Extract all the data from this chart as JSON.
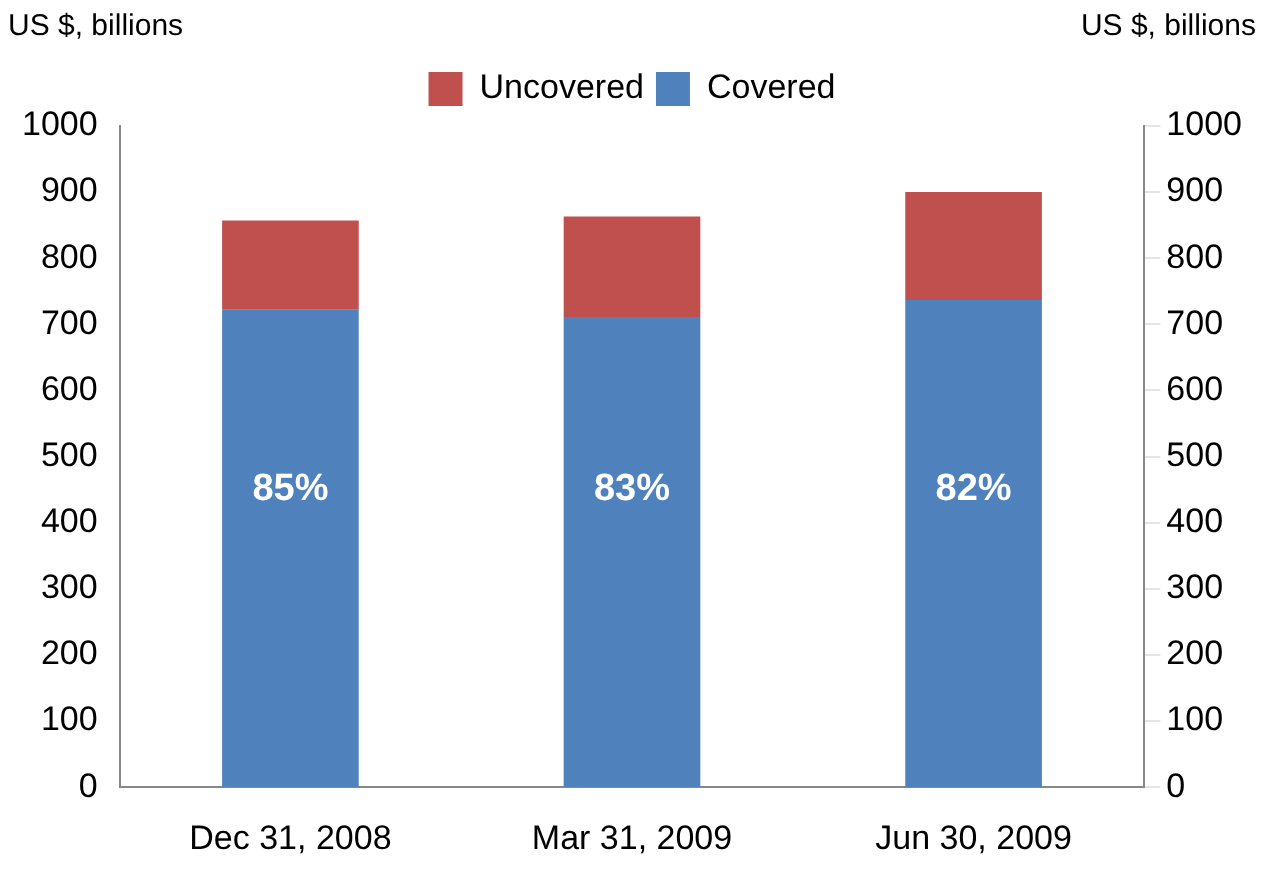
{
  "chart_data": {
    "type": "bar",
    "stacked": true,
    "categories": [
      "Dec 31, 2008",
      "Mar 31, 2009",
      "Jun 30, 2009"
    ],
    "series": [
      {
        "name": "Covered",
        "color": "#4f81bd",
        "values": [
          722,
          711,
          737
        ]
      },
      {
        "name": "Uncovered",
        "color": "#c0504d",
        "values": [
          135,
          152,
          163
        ]
      }
    ],
    "ylabel": "US $, billions",
    "y2label": "US $, billions",
    "ylim": [
      0,
      1000
    ],
    "yticks": [
      0,
      100,
      200,
      300,
      400,
      500,
      600,
      700,
      800,
      900,
      1000
    ],
    "y2lim": [
      0,
      1000
    ],
    "y2ticks": [
      0,
      100,
      200,
      300,
      400,
      500,
      600,
      700,
      800,
      900,
      1000
    ],
    "legend": "top",
    "grid": false,
    "annotations": [
      "85%",
      "83%",
      "82%"
    ]
  }
}
